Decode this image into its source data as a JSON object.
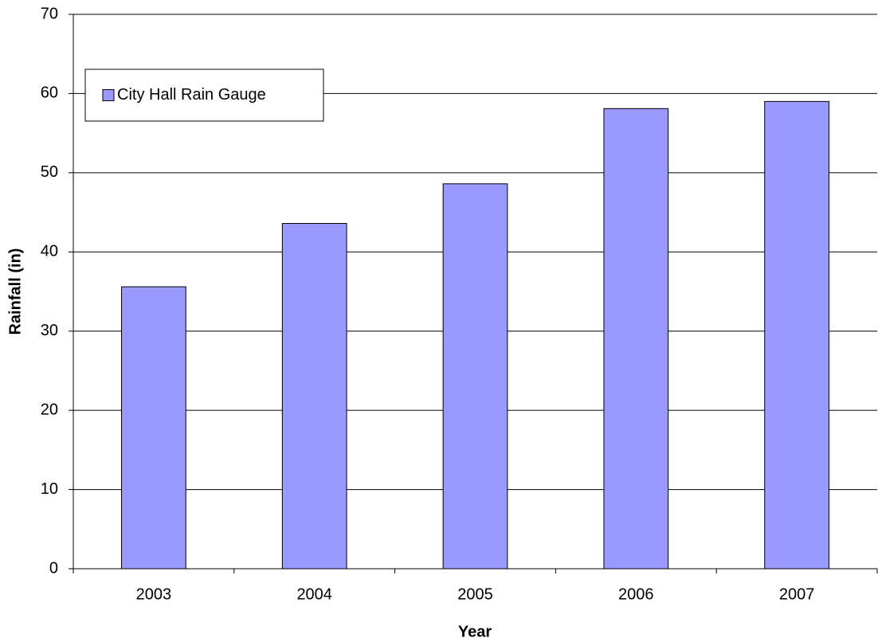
{
  "chart_data": {
    "type": "bar",
    "x_label": "Year",
    "y_label": "Rainfall (in)",
    "categories": [
      "2003",
      "2004",
      "2005",
      "2006",
      "2007"
    ],
    "series": [
      {
        "name": "City Hall Rain Gauge",
        "color": "#9999ff",
        "values": [
          35.6,
          43.6,
          48.6,
          58.1,
          59.0
        ]
      }
    ],
    "ylim": [
      0,
      70
    ],
    "yticks": [
      0,
      10,
      20,
      30,
      40,
      50,
      60,
      70
    ],
    "grid": true,
    "legend": "upper left"
  }
}
